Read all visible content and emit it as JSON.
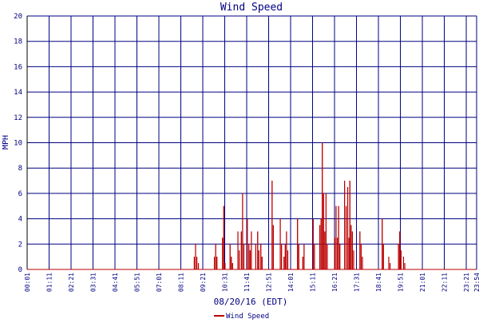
{
  "chart_data": {
    "type": "line",
    "title": "Wind Speed",
    "xlabel": "08/20/16 (EDT)",
    "ylabel": "MPH",
    "ylim": [
      0,
      20
    ],
    "yticks": [
      0,
      2,
      4,
      6,
      8,
      10,
      12,
      14,
      16,
      18,
      20
    ],
    "xlim": [
      "00:01",
      "23:54"
    ],
    "xticks": [
      "00:01",
      "01:11",
      "02:21",
      "03:31",
      "04:41",
      "05:51",
      "07:01",
      "08:11",
      "09:21",
      "10:31",
      "11:41",
      "12:51",
      "14:01",
      "15:11",
      "16:21",
      "17:31",
      "18:41",
      "19:51",
      "21:01",
      "22:11",
      "23:21",
      "23:54"
    ],
    "grid": true,
    "legend_position": "bottom-left",
    "colors": {
      "series": "#bb0000",
      "grid": "#000080",
      "text": "#000080",
      "axis": "#000000"
    },
    "series": [
      {
        "name": "Wind Speed",
        "points": [
          [
            "08:54",
            1.0
          ],
          [
            "08:58",
            2.0
          ],
          [
            "09:02",
            1.0
          ],
          [
            "09:07",
            0.5
          ],
          [
            "09:58",
            1.0
          ],
          [
            "10:02",
            2.0
          ],
          [
            "10:06",
            1.0
          ],
          [
            "10:24",
            2.5
          ],
          [
            "10:28",
            5.0
          ],
          [
            "10:32",
            0.5
          ],
          [
            "10:48",
            2.0
          ],
          [
            "10:52",
            1.0
          ],
          [
            "10:56",
            0.5
          ],
          [
            "11:13",
            3.0
          ],
          [
            "11:17",
            1.5
          ],
          [
            "11:24",
            3.0
          ],
          [
            "11:28",
            6.0
          ],
          [
            "11:32",
            2.0
          ],
          [
            "11:43",
            4.0
          ],
          [
            "11:48",
            2.0
          ],
          [
            "11:52",
            1.5
          ],
          [
            "11:56",
            3.0
          ],
          [
            "12:10",
            2.0
          ],
          [
            "12:16",
            3.0
          ],
          [
            "12:20",
            1.5
          ],
          [
            "12:26",
            2.0
          ],
          [
            "12:30",
            1.0
          ],
          [
            "13:02",
            7.0
          ],
          [
            "13:06",
            3.5
          ],
          [
            "13:28",
            4.0
          ],
          [
            "13:32",
            2.0
          ],
          [
            "13:40",
            1.0
          ],
          [
            "13:44",
            2.0
          ],
          [
            "13:48",
            3.0
          ],
          [
            "13:52",
            1.5
          ],
          [
            "14:23",
            4.0
          ],
          [
            "14:27",
            2.0
          ],
          [
            "14:40",
            1.0
          ],
          [
            "14:44",
            2.0
          ],
          [
            "15:13",
            4.0
          ],
          [
            "15:17",
            2.0
          ],
          [
            "15:34",
            3.5
          ],
          [
            "15:38",
            4.0
          ],
          [
            "15:42",
            10.0
          ],
          [
            "15:46",
            6.0
          ],
          [
            "15:50",
            3.0
          ],
          [
            "15:54",
            6.0
          ],
          [
            "15:58",
            2.0
          ],
          [
            "16:22",
            2.5
          ],
          [
            "16:26",
            5.0
          ],
          [
            "16:30",
            2.5
          ],
          [
            "16:34",
            5.0
          ],
          [
            "16:38",
            2.0
          ],
          [
            "16:53",
            7.0
          ],
          [
            "16:58",
            5.0
          ],
          [
            "17:03",
            6.5
          ],
          [
            "17:07",
            2.5
          ],
          [
            "17:10",
            7.0
          ],
          [
            "17:14",
            3.5
          ],
          [
            "17:18",
            3.0
          ],
          [
            "17:22",
            1.5
          ],
          [
            "17:42",
            3.0
          ],
          [
            "17:46",
            2.0
          ],
          [
            "17:50",
            1.0
          ],
          [
            "18:53",
            4.0
          ],
          [
            "18:57",
            2.0
          ],
          [
            "19:14",
            1.0
          ],
          [
            "19:18",
            0.5
          ],
          [
            "19:45",
            2.0
          ],
          [
            "19:49",
            3.0
          ],
          [
            "19:53",
            1.5
          ],
          [
            "20:01",
            1.0
          ],
          [
            "20:05",
            0.5
          ]
        ]
      }
    ]
  }
}
